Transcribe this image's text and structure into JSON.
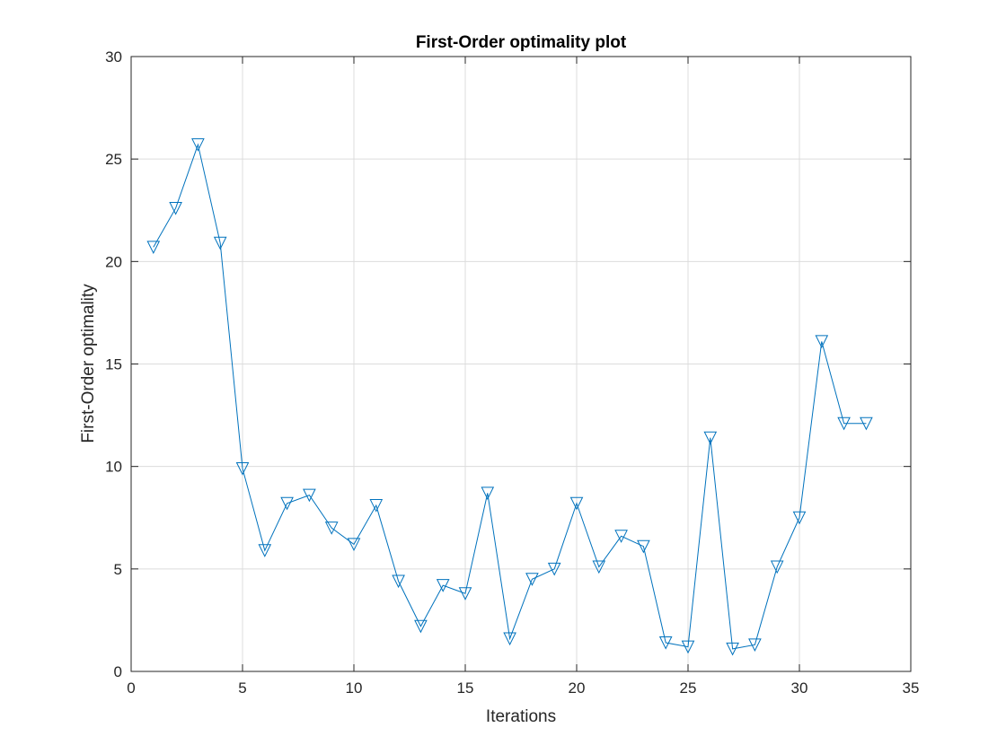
{
  "chart_data": {
    "type": "line",
    "title": "First-Order optimality plot",
    "xlabel": "Iterations",
    "ylabel": "First-Order optimality",
    "xlim": [
      0,
      35
    ],
    "ylim": [
      0,
      30
    ],
    "xticks": [
      0,
      5,
      10,
      15,
      20,
      25,
      30,
      35
    ],
    "yticks": [
      0,
      5,
      10,
      15,
      20,
      25,
      30
    ],
    "grid": true,
    "marker": "triangle-down",
    "color": "#0072BD",
    "series": [
      {
        "x": [
          1,
          2,
          3,
          4,
          5,
          6,
          7,
          8,
          9,
          10,
          11,
          12,
          13,
          14,
          15,
          16,
          17,
          18,
          19,
          20,
          21,
          22,
          23,
          24,
          25,
          26,
          27,
          28,
          29,
          30,
          31,
          32,
          33
        ],
        "values": [
          20.7,
          22.6,
          25.7,
          20.9,
          9.9,
          5.9,
          8.2,
          8.6,
          7.0,
          6.2,
          8.1,
          4.4,
          2.2,
          4.2,
          3.8,
          8.7,
          1.6,
          4.5,
          5.0,
          8.2,
          5.1,
          6.6,
          6.1,
          1.4,
          1.2,
          11.4,
          1.1,
          1.3,
          5.1,
          7.5,
          16.1,
          12.1,
          12.1
        ]
      }
    ]
  }
}
